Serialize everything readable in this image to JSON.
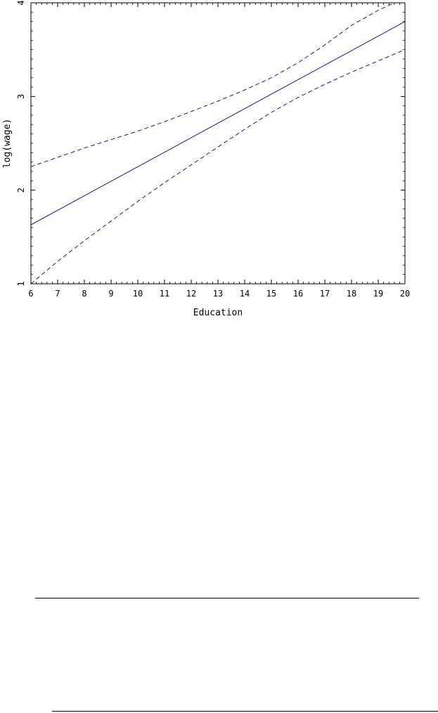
{
  "chart_data": {
    "type": "line",
    "title": "",
    "xlabel": "Education",
    "ylabel": "log(wage)",
    "xlim": [
      6,
      20
    ],
    "ylim": [
      1,
      4
    ],
    "xticks": [
      "6",
      "7",
      "8",
      "9",
      "10",
      "11",
      "12",
      "13",
      "14",
      "15",
      "16",
      "17",
      "18",
      "19",
      "20"
    ],
    "yticks": [
      "1",
      "2",
      "3",
      "4"
    ],
    "grid": false,
    "line_color": "#1a1a8c",
    "series": [
      {
        "style": "solid",
        "x": [
          6,
          20
        ],
        "y": [
          1.63,
          3.8
        ]
      },
      {
        "style": "dashed",
        "x": [
          6,
          7,
          8,
          9,
          10,
          11,
          12,
          13,
          14,
          15,
          16,
          17,
          18,
          19,
          19.6,
          20
        ],
        "y": [
          2.25,
          2.35,
          2.45,
          2.54,
          2.63,
          2.73,
          2.84,
          2.95,
          3.07,
          3.2,
          3.36,
          3.55,
          3.76,
          3.92,
          4.0,
          4.05
        ]
      },
      {
        "style": "dashed",
        "x": [
          6,
          7,
          8,
          9,
          10,
          11,
          12,
          13,
          14,
          15,
          16,
          17,
          18,
          19,
          20
        ],
        "y": [
          1.0,
          1.24,
          1.46,
          1.67,
          1.88,
          2.08,
          2.27,
          2.46,
          2.65,
          2.83,
          2.99,
          3.13,
          3.26,
          3.38,
          3.5
        ]
      }
    ]
  }
}
